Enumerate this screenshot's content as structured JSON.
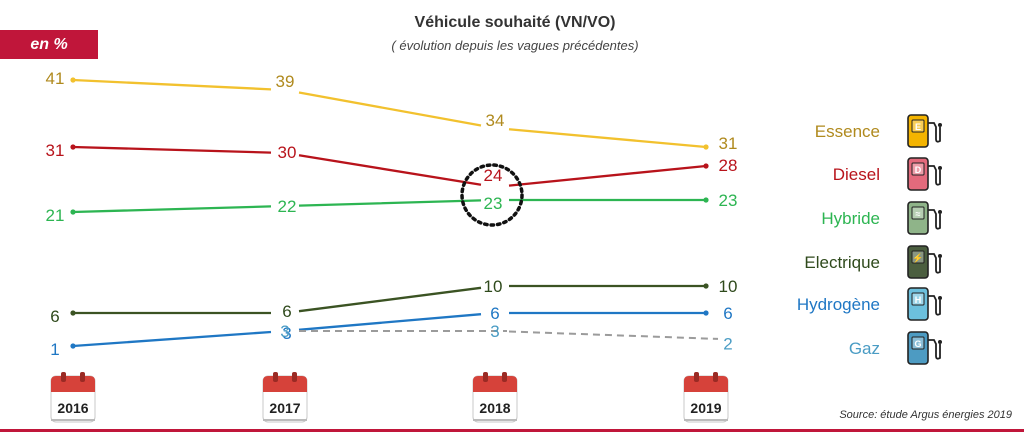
{
  "header": {
    "unit_badge": "en %",
    "title": "Véhicule souhaité (VN/VO)",
    "subtitle": "( évolution depuis les vagues précédentes)"
  },
  "footer": {
    "source": "Source: étude Argus énergies 2019"
  },
  "chart_data": {
    "type": "line",
    "x": [
      "2016",
      "2017",
      "2018",
      "2019"
    ],
    "grid": false,
    "legend_position": "right",
    "highlight": {
      "note": "dotted circle around Diesel/Hybride 2018 crossing"
    },
    "series": [
      {
        "name": "Essence",
        "color": "#f2c12e",
        "label_color": "#b08a1e",
        "dashed": false,
        "pump_color": "#f4b400",
        "pump_letter": "E",
        "values": [
          41,
          39,
          34,
          31
        ]
      },
      {
        "name": "Diesel",
        "color": "#b8131b",
        "label_color": "#b8131b",
        "dashed": false,
        "pump_color": "#e36a7c",
        "pump_letter": "D",
        "values": [
          31,
          30,
          24,
          28
        ]
      },
      {
        "name": "Hybride",
        "color": "#2db552",
        "label_color": "#2db552",
        "dashed": false,
        "pump_color": "#8fb489",
        "pump_letter": "≈",
        "values": [
          21,
          22,
          23,
          23
        ]
      },
      {
        "name": "Electrique",
        "color": "#3b5323",
        "label_color": "#2f4a1c",
        "dashed": false,
        "pump_color": "#4b5e3f",
        "pump_letter": "⚡",
        "values": [
          6,
          6,
          10,
          10
        ]
      },
      {
        "name": "Hydrogène",
        "color": "#1f77c4",
        "label_color": "#1f77c4",
        "dashed": false,
        "pump_color": "#6cc0dd",
        "pump_letter": "H",
        "values": [
          1,
          3,
          6,
          6
        ]
      },
      {
        "name": "Gaz",
        "color": "#9b9b9b",
        "label_color": "#4a9cc4",
        "dashed": true,
        "pump_color": "#4d9bc2",
        "pump_letter": "G",
        "values": [
          null,
          3,
          3,
          2
        ]
      }
    ]
  }
}
